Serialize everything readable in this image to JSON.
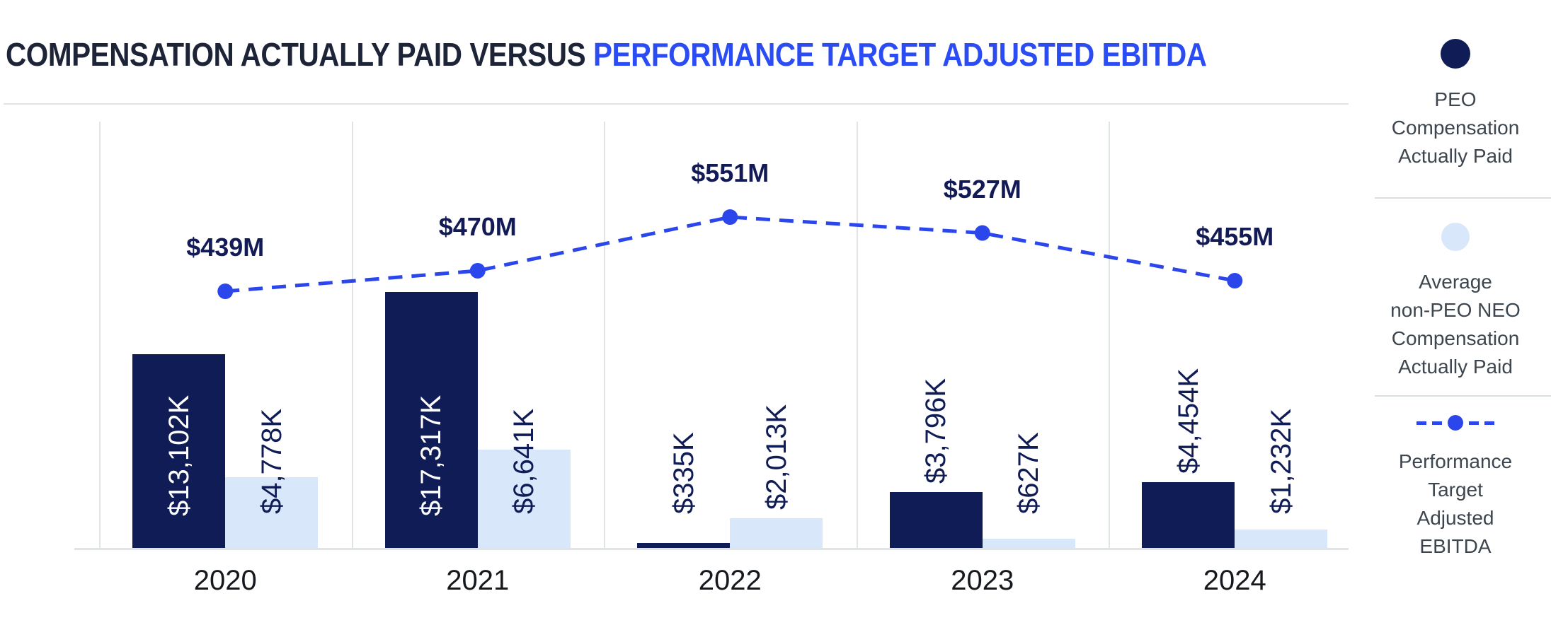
{
  "title": {
    "dark": "COMPENSATION ACTUALLY PAID VERSUS ",
    "blue": "PERFORMANCE TARGET ADJUSTED EBITDA"
  },
  "colors": {
    "navy": "#101c55",
    "light_blue": "#d8e7fa",
    "line_blue": "#2b46ea",
    "title_dark": "#1e2437",
    "title_blue": "#2b4cf2",
    "value_label_navy": "#131b57",
    "tick_text": "#15181d",
    "legend_text": "#3d454e",
    "grid_gray": "#dfe5e4"
  },
  "chart_data": {
    "type": "bar+line",
    "categories": [
      "2020",
      "2021",
      "2022",
      "2023",
      "2024"
    ],
    "series": [
      {
        "name": "PEO Compensation Actually Paid",
        "kind": "bar",
        "unit": "K",
        "values": [
          13102,
          17317,
          335,
          3796,
          4454
        ],
        "labels": [
          "$13,102K",
          "$17,317K",
          "$335K",
          "$3,796K",
          "$4,454K"
        ],
        "color": "#101c55"
      },
      {
        "name": "Average non-PEO NEO Compensation Actually Paid",
        "kind": "bar",
        "unit": "K",
        "values": [
          4778,
          6641,
          2013,
          627,
          1232
        ],
        "labels": [
          "$4,778K",
          "$6,641K",
          "$2,013K",
          "$627K",
          "$1,232K"
        ],
        "color": "#d8e7fa"
      },
      {
        "name": "Performance Target Adjusted EBITDA",
        "kind": "line",
        "unit": "M",
        "values": [
          439,
          470,
          551,
          527,
          455
        ],
        "labels": [
          "$439M",
          "$470M",
          "$551M",
          "$527M",
          "$455M"
        ],
        "color": "#2b46ea"
      }
    ],
    "bar_axis_max_k": 17317,
    "grid": "vertical panel dividers only",
    "legend_position": "right"
  },
  "legend": {
    "items": [
      {
        "swatch": "navy-circle",
        "lines": [
          "PEO",
          "Compensation",
          "Actually Paid"
        ],
        "label": "PEO Compensation Actually Paid"
      },
      {
        "swatch": "lightblue-circle",
        "lines": [
          "Average",
          "non-PEO NEO",
          "Compensation",
          "Actually Paid"
        ],
        "label": "Average non-PEO NEO Compensation Actually Paid"
      },
      {
        "swatch": "blue-dashed-line-dot",
        "lines": [
          "Performance",
          "Target",
          "Adjusted",
          "EBITDA"
        ],
        "label": "Performance Target Adjusted EBITDA"
      }
    ]
  }
}
